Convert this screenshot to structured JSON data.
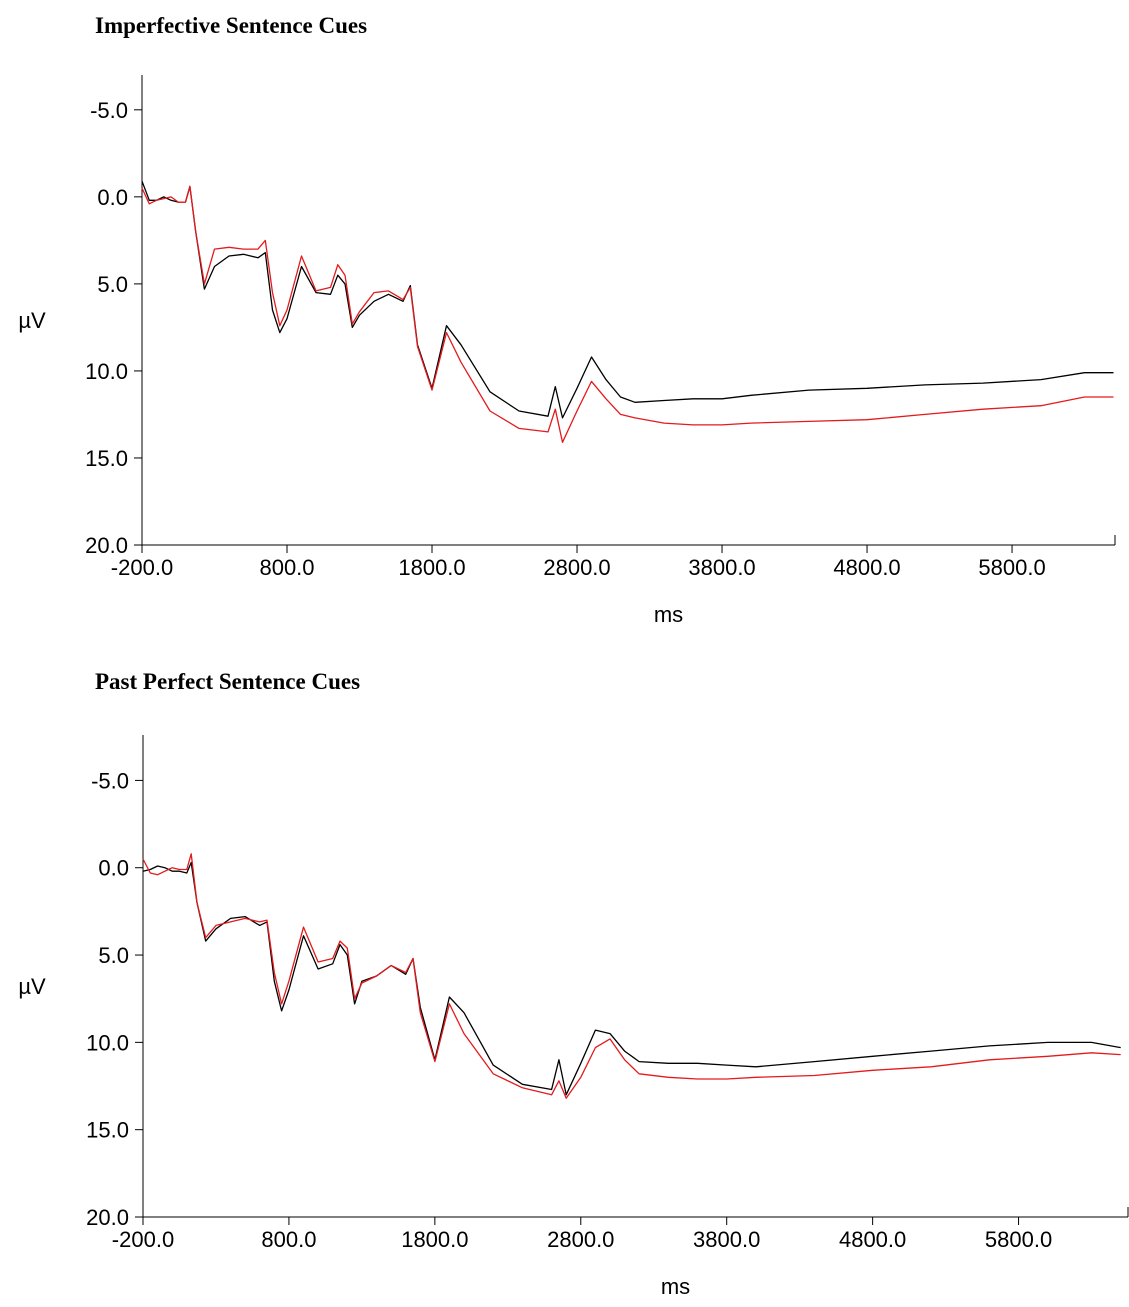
{
  "chart_data": [
    {
      "type": "line",
      "title": "Imperfective Sentence Cues",
      "x_label": "ms",
      "y_label": "µV",
      "invert_y": true,
      "xlim": [
        -200,
        6510
      ],
      "ylim": [
        -7,
        20
      ],
      "xticks": [
        {
          "value": -200,
          "label": "-200.0"
        },
        {
          "value": 800,
          "label": "800.0"
        },
        {
          "value": 1800,
          "label": "1800.0"
        },
        {
          "value": 2800,
          "label": "2800.0"
        },
        {
          "value": 3800,
          "label": "3800.0"
        },
        {
          "value": 4800,
          "label": "4800.0"
        },
        {
          "value": 5800,
          "label": "5800.0"
        }
      ],
      "yticks": [
        {
          "value": -5,
          "label": "-5.0"
        },
        {
          "value": 0,
          "label": "0.0"
        },
        {
          "value": 5,
          "label": "5.0"
        },
        {
          "value": 10,
          "label": "10.0"
        },
        {
          "value": 15,
          "label": "15.0"
        },
        {
          "value": 20,
          "label": "20.0"
        }
      ],
      "x": [
        -200,
        -150,
        -100,
        -50,
        0,
        50,
        100,
        130,
        170,
        230,
        300,
        400,
        500,
        600,
        650,
        700,
        750,
        800,
        900,
        1000,
        1100,
        1150,
        1200,
        1250,
        1300,
        1400,
        1500,
        1600,
        1650,
        1700,
        1800,
        1900,
        2000,
        2200,
        2400,
        2600,
        2650,
        2700,
        2800,
        2900,
        3000,
        3100,
        3200,
        3400,
        3600,
        3800,
        4000,
        4400,
        4800,
        5200,
        5600,
        6000,
        6300,
        6500
      ],
      "series": [
        {
          "color": "#000000",
          "values": [
            -0.9,
            0.2,
            0.2,
            0,
            0.2,
            0.3,
            0.3,
            -0.6,
            2,
            5.3,
            4,
            3.4,
            3.3,
            3.5,
            3.2,
            6.5,
            7.8,
            7,
            4,
            5.5,
            5.6,
            4.5,
            5,
            7.5,
            6.8,
            6,
            5.6,
            6,
            5.1,
            8.5,
            11,
            7.4,
            8.5,
            11.2,
            12.3,
            12.6,
            10.9,
            12.7,
            11,
            9.2,
            10.5,
            11.5,
            11.8,
            11.7,
            11.6,
            11.6,
            11.4,
            11.1,
            11.0,
            10.8,
            10.7,
            10.5,
            10.1,
            10.1
          ]
        },
        {
          "color": "#e41a1c",
          "values": [
            -0.5,
            0.4,
            0.2,
            0.1,
            0,
            0.3,
            0.3,
            -0.6,
            2,
            5,
            3,
            2.9,
            3,
            3,
            2.5,
            5.5,
            7.4,
            6.5,
            3.4,
            5.4,
            5.2,
            3.9,
            4.5,
            7.3,
            6.6,
            5.5,
            5.4,
            5.9,
            5.2,
            8.6,
            11.1,
            7.8,
            9.5,
            12.3,
            13.3,
            13.5,
            12.2,
            14.1,
            12.3,
            10.6,
            11.6,
            12.5,
            12.7,
            13,
            13.1,
            13.1,
            13,
            12.9,
            12.8,
            12.5,
            12.2,
            12,
            11.5,
            11.5
          ]
        }
      ]
    },
    {
      "type": "line",
      "title": "Past Perfect Sentence Cues",
      "x_label": "ms",
      "y_label": "µV",
      "invert_y": true,
      "xlim": [
        -200,
        6550
      ],
      "ylim": [
        -7.6,
        20
      ],
      "xticks": [
        {
          "value": -200,
          "label": "-200.0"
        },
        {
          "value": 800,
          "label": "800.0"
        },
        {
          "value": 1800,
          "label": "1800.0"
        },
        {
          "value": 2800,
          "label": "2800.0"
        },
        {
          "value": 3800,
          "label": "3800.0"
        },
        {
          "value": 4800,
          "label": "4800.0"
        },
        {
          "value": 5800,
          "label": "5800.0"
        }
      ],
      "yticks": [
        {
          "value": -5,
          "label": "-5.0"
        },
        {
          "value": 0,
          "label": "0.0"
        },
        {
          "value": 5,
          "label": "5.0"
        },
        {
          "value": 10,
          "label": "10.0"
        },
        {
          "value": 15,
          "label": "15.0"
        },
        {
          "value": 20,
          "label": "20.0"
        }
      ],
      "x": [
        -200,
        -150,
        -100,
        -50,
        0,
        50,
        100,
        130,
        170,
        230,
        300,
        400,
        500,
        600,
        650,
        700,
        750,
        800,
        900,
        1000,
        1100,
        1150,
        1200,
        1250,
        1300,
        1400,
        1500,
        1600,
        1650,
        1700,
        1800,
        1900,
        2000,
        2200,
        2400,
        2600,
        2650,
        2700,
        2800,
        2900,
        3000,
        3100,
        3200,
        3400,
        3600,
        3800,
        4000,
        4400,
        4800,
        5200,
        5600,
        6000,
        6300,
        6500
      ],
      "series": [
        {
          "color": "#000000",
          "values": [
            0.2,
            0.1,
            -0.1,
            0,
            0.2,
            0.2,
            0.3,
            -0.3,
            2,
            4.2,
            3.5,
            2.9,
            2.8,
            3.3,
            3.1,
            6.5,
            8.2,
            7,
            3.9,
            5.8,
            5.5,
            4.4,
            5,
            7.8,
            6.5,
            6.2,
            5.6,
            6.1,
            5.2,
            8,
            11,
            7.4,
            8.3,
            11.3,
            12.4,
            12.7,
            11,
            13,
            11.2,
            9.3,
            9.5,
            10.5,
            11.1,
            11.2,
            11.2,
            11.3,
            11.4,
            11.1,
            10.8,
            10.5,
            10.2,
            10,
            10,
            10.3
          ]
        },
        {
          "color": "#e41a1c",
          "values": [
            -0.5,
            0.3,
            0.4,
            0.2,
            0,
            0.1,
            0.1,
            -0.8,
            2,
            4,
            3.3,
            3.1,
            2.9,
            3.1,
            3,
            6,
            7.8,
            6.5,
            3.4,
            5.4,
            5.2,
            4.2,
            4.6,
            7.5,
            6.6,
            6.2,
            5.6,
            6,
            5.2,
            8.3,
            11.1,
            7.8,
            9.5,
            11.8,
            12.6,
            13,
            12.2,
            13.2,
            12,
            10.3,
            9.8,
            11,
            11.8,
            12,
            12.1,
            12.1,
            12,
            11.9,
            11.6,
            11.4,
            11,
            10.8,
            10.6,
            10.7
          ]
        }
      ]
    }
  ]
}
